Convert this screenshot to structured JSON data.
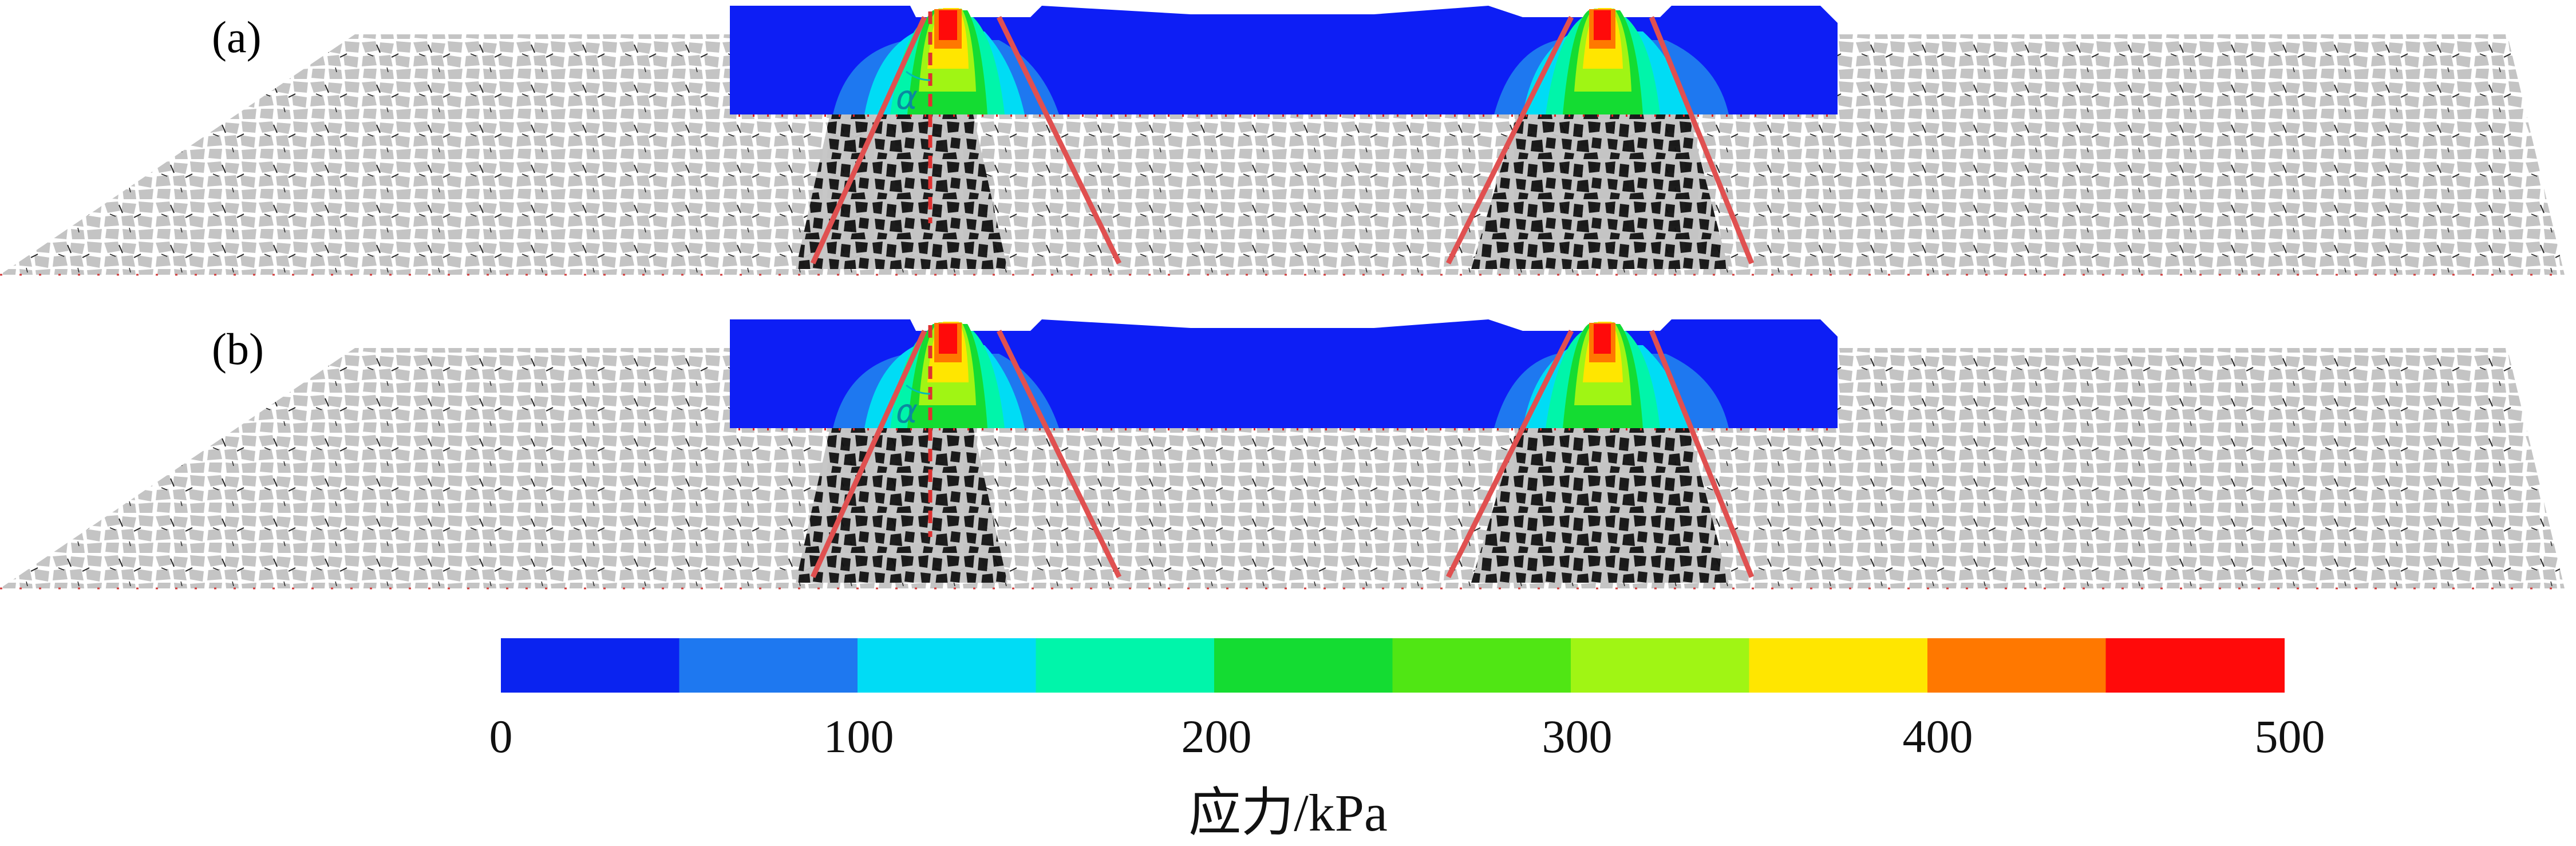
{
  "panels": [
    {
      "label": "(a)",
      "angle_symbol": "α"
    },
    {
      "label": "(b)",
      "angle_symbol": "α"
    }
  ],
  "colorbar": {
    "title": "应力/kPa",
    "min": 0,
    "max": 500,
    "ticks": [
      "0",
      "100",
      "200",
      "300",
      "400",
      "500"
    ],
    "colors": [
      "#0a23f0",
      "#1e78f0",
      "#00dcf5",
      "#00f5aa",
      "#14dc32",
      "#50e614",
      "#a0f514",
      "#ffe600",
      "#ff7800",
      "#ff0a0a"
    ]
  },
  "colors": {
    "sleeper": "#0d1ef5",
    "ballast_light": "#c4c4c4",
    "ballast_dark": "#111111",
    "cone_line": "#e05050"
  }
}
